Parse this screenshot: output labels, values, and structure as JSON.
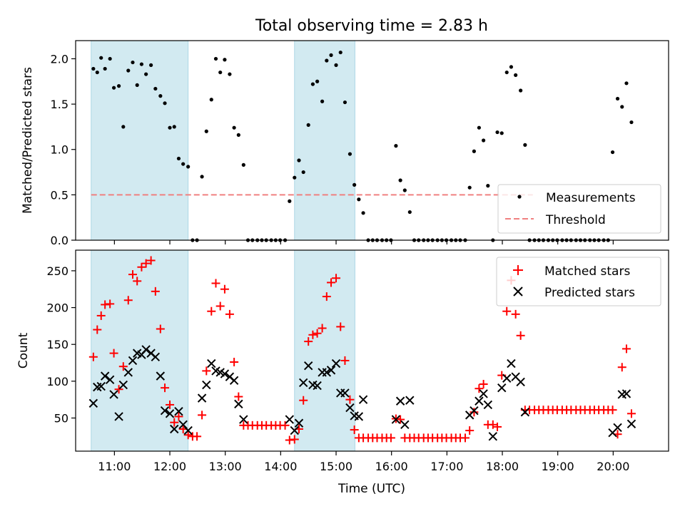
{
  "chart_data": {
    "type": "scatter",
    "title": "Total observing time = 2.83 h",
    "xlabel": "Time (UTC)",
    "x_tick_labels": [
      "11:00",
      "12:00",
      "13:00",
      "14:00",
      "15:00",
      "16:00",
      "17:00",
      "18:00",
      "19:00",
      "20:00"
    ],
    "x_ticks_hours": [
      11,
      12,
      13,
      14,
      15,
      16,
      17,
      18,
      19,
      20
    ],
    "xlim_hours": [
      10.3,
      21.0
    ],
    "shaded_intervals_hours": [
      [
        10.58,
        12.33
      ],
      [
        14.25,
        15.34
      ]
    ],
    "colors": {
      "shade": "#add8e6",
      "matched": "#ff0000",
      "predicted": "#000000",
      "threshold": "#f08080",
      "measurement": "#000000"
    },
    "top": {
      "ylabel": "Matched/Predicted stars",
      "ylim": [
        0,
        2.2
      ],
      "yticks": [
        "0.0",
        "0.5",
        "1.0",
        "1.5",
        "2.0"
      ],
      "ytick_values": [
        0,
        0.5,
        1.0,
        1.5,
        2.0
      ],
      "threshold": 0.5,
      "legend": {
        "position": "lower right",
        "entries": [
          "Measurements",
          "Threshold"
        ]
      },
      "measurements": [
        [
          10.62,
          1.89
        ],
        [
          10.69,
          1.85
        ],
        [
          10.76,
          2.01
        ],
        [
          10.83,
          1.89
        ],
        [
          10.92,
          2.0
        ],
        [
          10.99,
          1.68
        ],
        [
          11.08,
          1.7
        ],
        [
          11.16,
          1.25
        ],
        [
          11.25,
          1.87
        ],
        [
          11.33,
          1.96
        ],
        [
          11.41,
          1.71
        ],
        [
          11.49,
          1.94
        ],
        [
          11.57,
          1.83
        ],
        [
          11.66,
          1.93
        ],
        [
          11.74,
          1.67
        ],
        [
          11.83,
          1.59
        ],
        [
          11.91,
          1.51
        ],
        [
          12.0,
          1.24
        ],
        [
          12.08,
          1.25
        ],
        [
          12.16,
          0.9
        ],
        [
          12.24,
          0.84
        ],
        [
          12.33,
          0.81
        ],
        [
          12.41,
          0.0
        ],
        [
          12.49,
          0.0
        ],
        [
          12.58,
          0.7
        ],
        [
          12.66,
          1.2
        ],
        [
          12.75,
          1.55
        ],
        [
          12.83,
          2.0
        ],
        [
          12.91,
          1.85
        ],
        [
          12.99,
          1.99
        ],
        [
          13.08,
          1.83
        ],
        [
          13.16,
          1.24
        ],
        [
          13.24,
          1.16
        ],
        [
          13.33,
          0.83
        ],
        [
          13.41,
          0.0
        ],
        [
          13.49,
          0.0
        ],
        [
          13.58,
          0.0
        ],
        [
          13.66,
          0.0
        ],
        [
          13.74,
          0.0
        ],
        [
          13.83,
          0.0
        ],
        [
          13.91,
          0.0
        ],
        [
          13.99,
          0.0
        ],
        [
          14.08,
          0.0
        ],
        [
          14.16,
          0.43
        ],
        [
          14.25,
          0.69
        ],
        [
          14.33,
          0.88
        ],
        [
          14.41,
          0.75
        ],
        [
          14.5,
          1.27
        ],
        [
          14.58,
          1.72
        ],
        [
          14.66,
          1.75
        ],
        [
          14.75,
          1.53
        ],
        [
          14.83,
          1.98
        ],
        [
          14.91,
          2.04
        ],
        [
          15.0,
          1.93
        ],
        [
          15.08,
          2.07
        ],
        [
          15.16,
          1.52
        ],
        [
          15.25,
          0.95
        ],
        [
          15.33,
          0.61
        ],
        [
          15.41,
          0.45
        ],
        [
          15.49,
          0.3
        ],
        [
          15.58,
          0.0
        ],
        [
          15.66,
          0.0
        ],
        [
          15.74,
          0.0
        ],
        [
          15.83,
          0.0
        ],
        [
          15.91,
          0.0
        ],
        [
          15.99,
          0.0
        ],
        [
          16.08,
          1.04
        ],
        [
          16.16,
          0.66
        ],
        [
          16.24,
          0.55
        ],
        [
          16.33,
          0.31
        ],
        [
          16.41,
          0.0
        ],
        [
          16.49,
          0.0
        ],
        [
          16.58,
          0.0
        ],
        [
          16.66,
          0.0
        ],
        [
          16.74,
          0.0
        ],
        [
          16.83,
          0.0
        ],
        [
          16.91,
          0.0
        ],
        [
          16.99,
          0.0
        ],
        [
          17.08,
          0.0
        ],
        [
          17.16,
          0.0
        ],
        [
          17.24,
          0.0
        ],
        [
          17.33,
          0.0
        ],
        [
          17.41,
          0.58
        ],
        [
          17.49,
          0.98
        ],
        [
          17.58,
          1.24
        ],
        [
          17.66,
          1.1
        ],
        [
          17.74,
          0.6
        ],
        [
          17.83,
          0.0
        ],
        [
          17.91,
          1.19
        ],
        [
          17.99,
          1.18
        ],
        [
          18.08,
          1.85
        ],
        [
          18.16,
          1.91
        ],
        [
          18.24,
          1.82
        ],
        [
          18.33,
          1.65
        ],
        [
          18.41,
          1.05
        ],
        [
          18.49,
          0.0
        ],
        [
          18.58,
          0.0
        ],
        [
          18.66,
          0.0
        ],
        [
          18.74,
          0.0
        ],
        [
          18.83,
          0.0
        ],
        [
          18.91,
          0.0
        ],
        [
          18.99,
          0.0
        ],
        [
          19.08,
          0.0
        ],
        [
          19.16,
          0.0
        ],
        [
          19.24,
          0.0
        ],
        [
          19.33,
          0.0
        ],
        [
          19.41,
          0.0
        ],
        [
          19.49,
          0.0
        ],
        [
          19.58,
          0.0
        ],
        [
          19.66,
          0.0
        ],
        [
          19.74,
          0.0
        ],
        [
          19.83,
          0.0
        ],
        [
          19.91,
          0.0
        ],
        [
          19.99,
          0.97
        ],
        [
          20.08,
          1.56
        ],
        [
          20.16,
          1.47
        ],
        [
          20.24,
          1.73
        ],
        [
          20.33,
          1.3
        ]
      ]
    },
    "bottom": {
      "ylabel": "Count",
      "ylim": [
        5,
        278
      ],
      "yticks": [
        "50",
        "100",
        "150",
        "200",
        "250"
      ],
      "ytick_values": [
        50,
        100,
        150,
        200,
        250
      ],
      "legend": {
        "position": "upper right",
        "entries": [
          "Matched stars",
          "Predicted stars"
        ]
      },
      "matched": [
        [
          10.62,
          133
        ],
        [
          10.69,
          170
        ],
        [
          10.76,
          189
        ],
        [
          10.83,
          204
        ],
        [
          10.92,
          205
        ],
        [
          10.99,
          138
        ],
        [
          11.08,
          89
        ],
        [
          11.16,
          120
        ],
        [
          11.25,
          210
        ],
        [
          11.33,
          245
        ],
        [
          11.41,
          236
        ],
        [
          11.49,
          255
        ],
        [
          11.57,
          260
        ],
        [
          11.66,
          264
        ],
        [
          11.74,
          222
        ],
        [
          11.83,
          171
        ],
        [
          11.91,
          91
        ],
        [
          12.0,
          68
        ],
        [
          12.08,
          44
        ],
        [
          12.16,
          52
        ],
        [
          12.24,
          35
        ],
        [
          12.33,
          27
        ],
        [
          12.41,
          25
        ],
        [
          12.49,
          25
        ],
        [
          12.58,
          54
        ],
        [
          12.66,
          114
        ],
        [
          12.75,
          195
        ],
        [
          12.83,
          233
        ],
        [
          12.91,
          202
        ],
        [
          12.99,
          225
        ],
        [
          13.08,
          191
        ],
        [
          13.16,
          126
        ],
        [
          13.24,
          79
        ],
        [
          13.33,
          40
        ],
        [
          13.41,
          40
        ],
        [
          13.49,
          40
        ],
        [
          13.58,
          40
        ],
        [
          13.66,
          40
        ],
        [
          13.74,
          40
        ],
        [
          13.83,
          40
        ],
        [
          13.91,
          40
        ],
        [
          13.99,
          40
        ],
        [
          14.08,
          40
        ],
        [
          14.16,
          20
        ],
        [
          14.25,
          21
        ],
        [
          14.33,
          35
        ],
        [
          14.41,
          74
        ],
        [
          14.5,
          154
        ],
        [
          14.58,
          163
        ],
        [
          14.66,
          165
        ],
        [
          14.75,
          172
        ],
        [
          14.83,
          215
        ],
        [
          14.91,
          234
        ],
        [
          15.0,
          240
        ],
        [
          15.08,
          174
        ],
        [
          15.16,
          128
        ],
        [
          15.25,
          75
        ],
        [
          15.33,
          34
        ],
        [
          15.41,
          23
        ],
        [
          15.49,
          23
        ],
        [
          15.58,
          23
        ],
        [
          15.66,
          23
        ],
        [
          15.74,
          23
        ],
        [
          15.83,
          23
        ],
        [
          15.91,
          23
        ],
        [
          15.99,
          23
        ],
        [
          16.08,
          49
        ],
        [
          16.16,
          48
        ],
        [
          16.24,
          23
        ],
        [
          16.33,
          23
        ],
        [
          16.41,
          23
        ],
        [
          16.49,
          23
        ],
        [
          16.58,
          23
        ],
        [
          16.66,
          23
        ],
        [
          16.74,
          23
        ],
        [
          16.83,
          23
        ],
        [
          16.91,
          23
        ],
        [
          16.99,
          23
        ],
        [
          17.08,
          23
        ],
        [
          17.16,
          23
        ],
        [
          17.24,
          23
        ],
        [
          17.33,
          23
        ],
        [
          17.41,
          33
        ],
        [
          17.49,
          58
        ],
        [
          17.58,
          90
        ],
        [
          17.66,
          96
        ],
        [
          17.74,
          41
        ],
        [
          17.83,
          41
        ],
        [
          17.91,
          38
        ],
        [
          17.99,
          108
        ],
        [
          18.08,
          195
        ],
        [
          18.16,
          237
        ],
        [
          18.24,
          191
        ],
        [
          18.33,
          162
        ],
        [
          18.41,
          61
        ],
        [
          18.49,
          61
        ],
        [
          18.58,
          61
        ],
        [
          18.66,
          61
        ],
        [
          18.74,
          61
        ],
        [
          18.83,
          61
        ],
        [
          18.91,
          61
        ],
        [
          18.99,
          61
        ],
        [
          19.08,
          61
        ],
        [
          19.16,
          61
        ],
        [
          19.24,
          61
        ],
        [
          19.33,
          61
        ],
        [
          19.41,
          61
        ],
        [
          19.49,
          61
        ],
        [
          19.58,
          61
        ],
        [
          19.66,
          61
        ],
        [
          19.74,
          61
        ],
        [
          19.83,
          61
        ],
        [
          19.91,
          61
        ],
        [
          19.99,
          61
        ],
        [
          20.08,
          28
        ],
        [
          20.16,
          119
        ],
        [
          20.24,
          144
        ],
        [
          20.33,
          56
        ]
      ],
      "predicted": [
        [
          10.62,
          70
        ],
        [
          10.69,
          92
        ],
        [
          10.76,
          93
        ],
        [
          10.83,
          107
        ],
        [
          10.92,
          102
        ],
        [
          10.99,
          82
        ],
        [
          11.08,
          52
        ],
        [
          11.16,
          95
        ],
        [
          11.25,
          112
        ],
        [
          11.33,
          128
        ],
        [
          11.41,
          138
        ],
        [
          11.49,
          136
        ],
        [
          11.57,
          143
        ],
        [
          11.66,
          138
        ],
        [
          11.74,
          133
        ],
        [
          11.83,
          107
        ],
        [
          11.91,
          60
        ],
        [
          12.0,
          56
        ],
        [
          12.08,
          35
        ],
        [
          12.16,
          59
        ],
        [
          12.24,
          41
        ],
        [
          12.33,
          33
        ],
        [
          12.58,
          77
        ],
        [
          12.66,
          95
        ],
        [
          12.75,
          124
        ],
        [
          12.83,
          114
        ],
        [
          12.91,
          112
        ],
        [
          12.99,
          110
        ],
        [
          13.08,
          106
        ],
        [
          13.16,
          101
        ],
        [
          13.24,
          69
        ],
        [
          13.33,
          48
        ],
        [
          14.16,
          48
        ],
        [
          14.25,
          33
        ],
        [
          14.33,
          43
        ],
        [
          14.41,
          98
        ],
        [
          14.5,
          121
        ],
        [
          14.58,
          95
        ],
        [
          14.66,
          94
        ],
        [
          14.75,
          112
        ],
        [
          14.83,
          112
        ],
        [
          14.91,
          115
        ],
        [
          15.0,
          124
        ],
        [
          15.08,
          84
        ],
        [
          15.16,
          84
        ],
        [
          15.25,
          64
        ],
        [
          15.33,
          53
        ],
        [
          15.41,
          52
        ],
        [
          15.49,
          75
        ],
        [
          16.08,
          48
        ],
        [
          16.16,
          73
        ],
        [
          16.24,
          41
        ],
        [
          16.33,
          74
        ],
        [
          17.41,
          54
        ],
        [
          17.49,
          60
        ],
        [
          17.58,
          73
        ],
        [
          17.66,
          83
        ],
        [
          17.74,
          68
        ],
        [
          17.83,
          25
        ],
        [
          17.99,
          91
        ],
        [
          18.08,
          104
        ],
        [
          18.16,
          124
        ],
        [
          18.24,
          106
        ],
        [
          18.33,
          99
        ],
        [
          18.41,
          58
        ],
        [
          19.99,
          30
        ],
        [
          20.08,
          37
        ],
        [
          20.16,
          82
        ],
        [
          20.24,
          83
        ],
        [
          20.33,
          42
        ]
      ]
    }
  }
}
